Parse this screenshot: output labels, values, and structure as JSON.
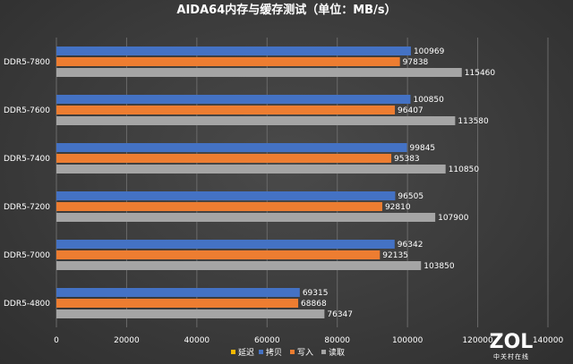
{
  "chart_data": {
    "type": "bar",
    "orientation": "horizontal",
    "title": "AIDA64内存与缓存测试（单位：MB/s）",
    "categories": [
      "DDR5-7800",
      "DDR5-7600",
      "DDR5-7400",
      "DDR5-7200",
      "DDR5-7000",
      "DDR5-4800"
    ],
    "series": [
      {
        "name": "延迟",
        "color": "#f5b800",
        "values": [
          null,
          null,
          null,
          null,
          null,
          null
        ]
      },
      {
        "name": "拷贝",
        "color": "#4472c4",
        "values": [
          100969,
          100850,
          99845,
          96505,
          96342,
          69315
        ]
      },
      {
        "name": "写入",
        "color": "#ed7d31",
        "values": [
          97838,
          96407,
          95383,
          92810,
          92135,
          68868
        ]
      },
      {
        "name": "读取",
        "color": "#a5a5a5",
        "values": [
          115460,
          113580,
          110850,
          107900,
          103850,
          76347
        ]
      }
    ],
    "xlim": [
      0,
      140000
    ],
    "xticks": [
      0,
      20000,
      40000,
      60000,
      80000,
      100000,
      120000,
      140000
    ],
    "grid": true,
    "legend_position": "bottom"
  },
  "watermark": {
    "main": "ZOL",
    "sub": "中关村在线"
  }
}
